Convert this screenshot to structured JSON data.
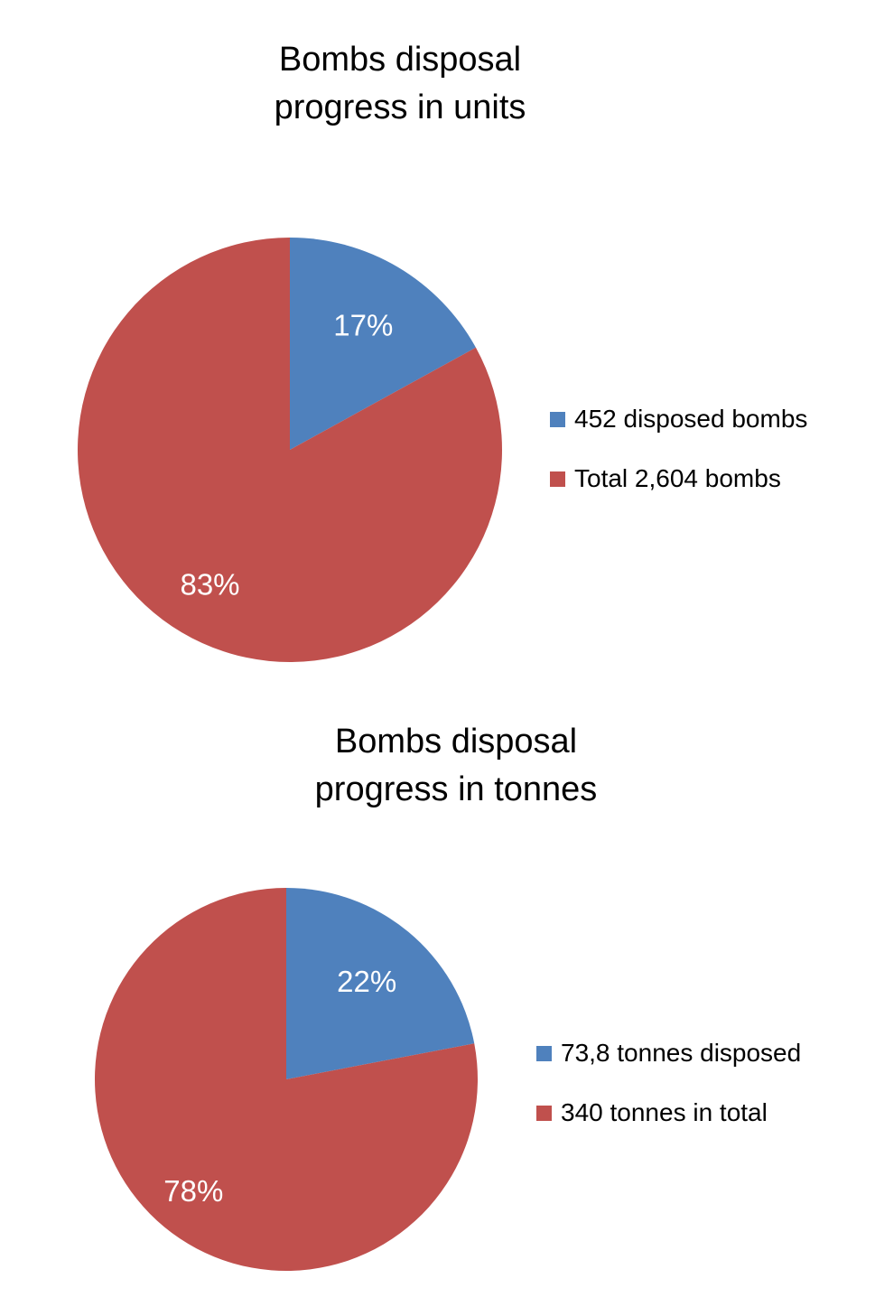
{
  "chart_data": [
    {
      "type": "pie",
      "title": [
        "Bombs disposal",
        "progress in units"
      ],
      "slices": [
        {
          "label": "452 disposed bombs",
          "value": 17,
          "display": "17%",
          "color": "#4f81bd"
        },
        {
          "label": "Total 2,604 bombs",
          "value": 83,
          "display": "83%",
          "color": "#c0504d"
        }
      ],
      "legend_position": "right"
    },
    {
      "type": "pie",
      "title": [
        "Bombs disposal",
        "progress in tonnes"
      ],
      "slices": [
        {
          "label": "73,8 tonnes disposed",
          "value": 22,
          "display": "22%",
          "color": "#4f81bd"
        },
        {
          "label": "340 tonnes in total",
          "value": 78,
          "display": "78%",
          "color": "#c0504d"
        }
      ],
      "legend_position": "right"
    }
  ]
}
